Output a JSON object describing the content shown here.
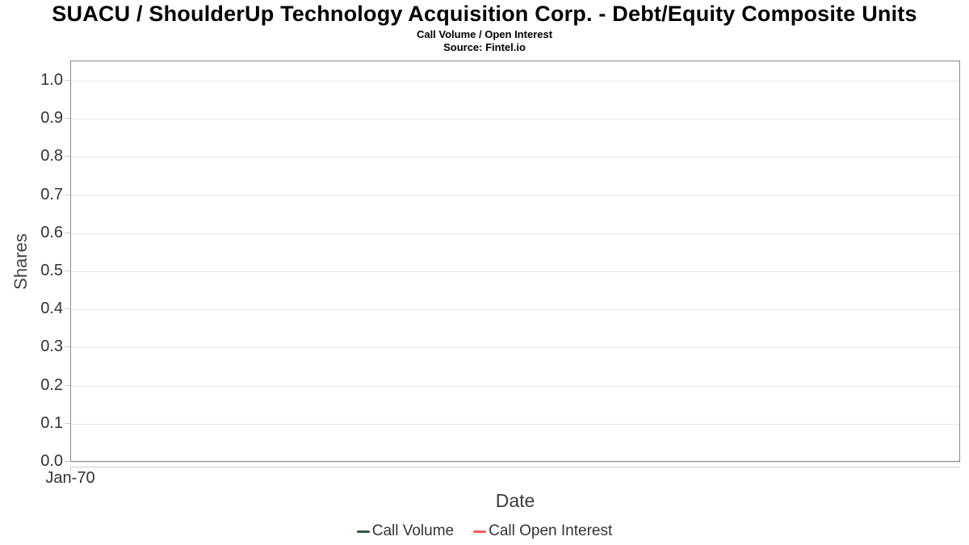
{
  "header": {
    "title": "SUACU / ShoulderUp Technology Acquisition Corp. - Debt/Equity Composite Units",
    "subtitle": "Call Volume / Open Interest",
    "source": "Source: Fintel.io"
  },
  "chart_data": {
    "type": "line",
    "title": "SUACU / ShoulderUp Technology Acquisition Corp. - Debt/Equity Composite Units",
    "subtitle": "Call Volume / Open Interest",
    "source": "Source: Fintel.io",
    "xlabel": "Date",
    "ylabel": "Shares",
    "ylim": [
      0.0,
      1.053
    ],
    "yticks": [
      0.0,
      0.1,
      0.2,
      0.3,
      0.4,
      0.5,
      0.6,
      0.7,
      0.8,
      0.9,
      1.0
    ],
    "ytick_decimals": 1,
    "xticks": [
      "Jan-70"
    ],
    "grid": true,
    "legend_position": "bottom",
    "series": [
      {
        "name": "Call Volume",
        "color": "#2d5b3f",
        "x": [],
        "values": []
      },
      {
        "name": "Call Open Interest",
        "color": "#fa5c5c",
        "x": [],
        "values": []
      }
    ]
  },
  "colors": {
    "plot_border": "#888888",
    "gridline": "#e7e7e7",
    "axis_line": "#cccccc",
    "tick_text": "#333333",
    "title_text": "#000000"
  }
}
